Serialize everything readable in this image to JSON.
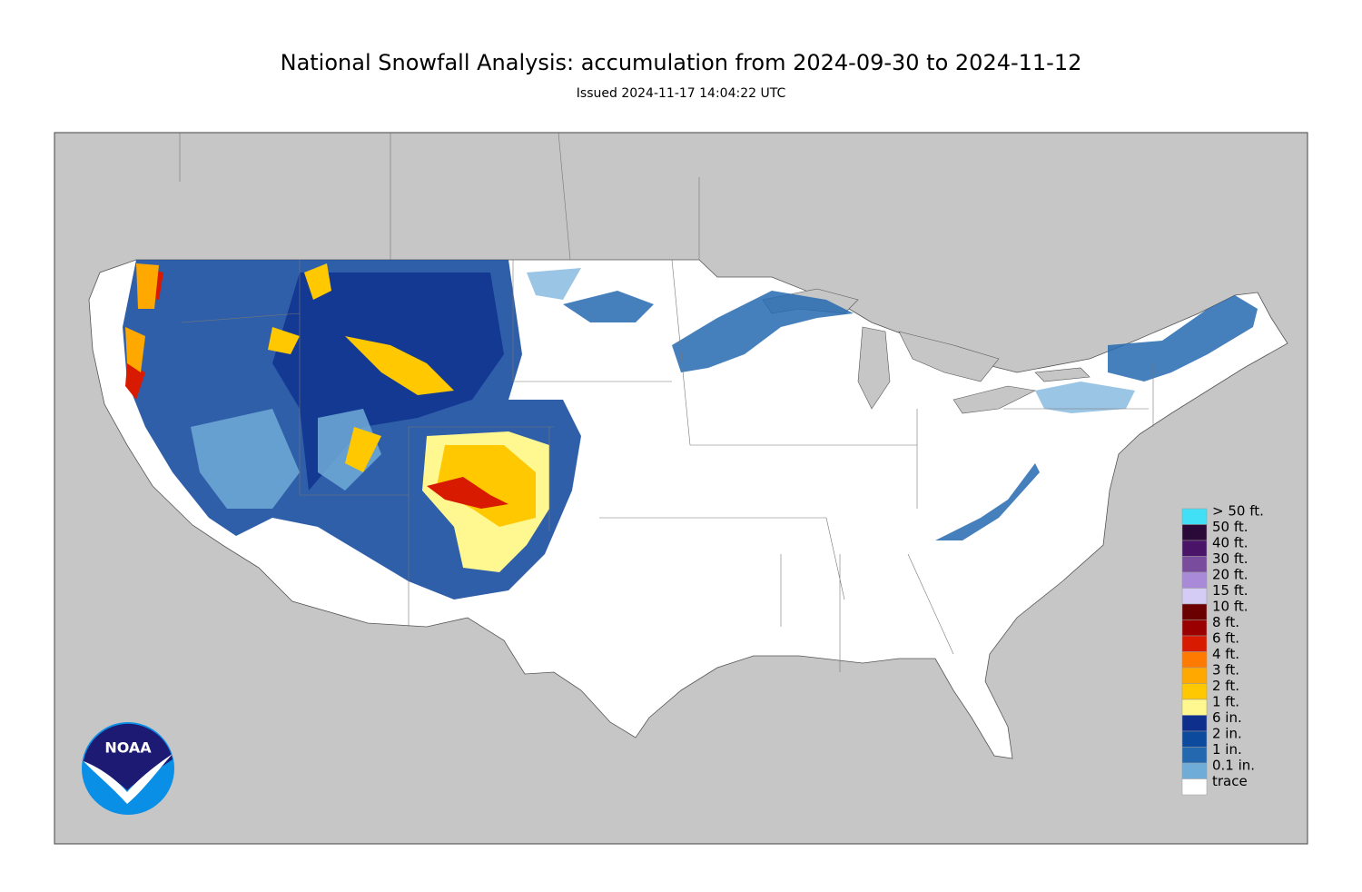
{
  "header": {
    "title": "National Snowfall Analysis: accumulation from 2024-09-30 to 2024-11-12",
    "subtitle": "Issued 2024-11-17 14:04:22 UTC"
  },
  "logo": {
    "text": "NOAA"
  },
  "legend": {
    "items": [
      {
        "label": "> 50 ft.",
        "color": "#41e0f6"
      },
      {
        "label": "50 ft.",
        "color": "#2a0838"
      },
      {
        "label": "40 ft.",
        "color": "#4a1468"
      },
      {
        "label": "30 ft.",
        "color": "#7a4c9e"
      },
      {
        "label": "20 ft.",
        "color": "#a88ad8"
      },
      {
        "label": "15 ft.",
        "color": "#d4ccf4"
      },
      {
        "label": "10 ft.",
        "color": "#6a0000"
      },
      {
        "label": "8 ft.",
        "color": "#9a0000"
      },
      {
        "label": "6 ft.",
        "color": "#d81a00"
      },
      {
        "label": "4 ft.",
        "color": "#ff7a00"
      },
      {
        "label": "3 ft.",
        "color": "#ffa800"
      },
      {
        "label": "2 ft.",
        "color": "#ffc800"
      },
      {
        "label": "1 ft.",
        "color": "#fff890"
      },
      {
        "label": "6 in.",
        "color": "#0e2f8c"
      },
      {
        "label": "2 in.",
        "color": "#0c4a9e"
      },
      {
        "label": "1 in.",
        "color": "#2468b0"
      },
      {
        "label": "0.1 in.",
        "color": "#70acd8"
      },
      {
        "label": "trace",
        "color": "#ffffff"
      }
    ]
  }
}
